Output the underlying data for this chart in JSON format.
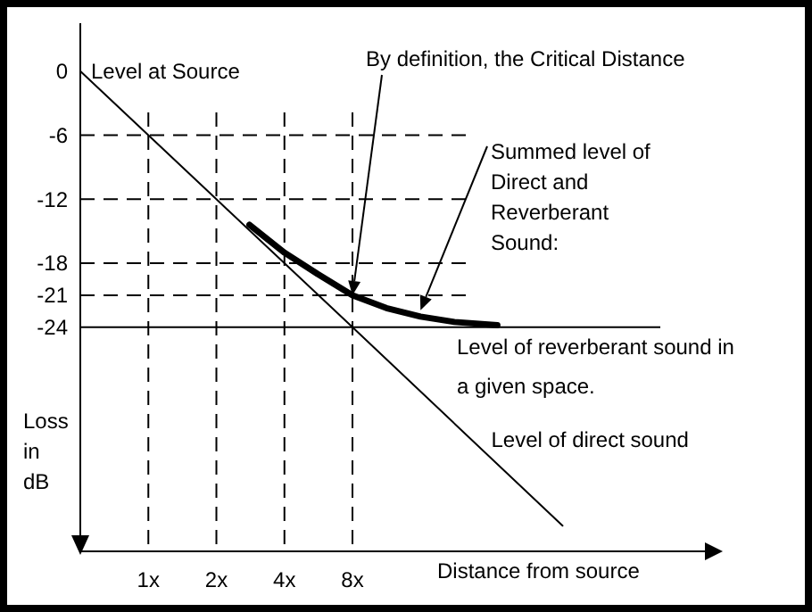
{
  "chart_data": {
    "type": "line",
    "xlabel": "Distance from source",
    "ylabel": "Loss in dB",
    "log": "x",
    "xlim": [
      0.5,
      290
    ],
    "ylim": [
      -45,
      4.5
    ],
    "xticks": [
      {
        "value": 1,
        "label": "1x"
      },
      {
        "value": 2,
        "label": "2x"
      },
      {
        "value": 4,
        "label": "4x"
      },
      {
        "value": 8,
        "label": "8x"
      }
    ],
    "yticks": [
      0,
      -6,
      -12,
      -18,
      -21,
      -24
    ],
    "series": [
      {
        "name": "Level of direct sound",
        "color": "#000000",
        "x": [
          0.5,
          1,
          2,
          4,
          8,
          68
        ],
        "values": [
          0,
          -6,
          -12,
          -18,
          -24,
          -42.6
        ]
      },
      {
        "color": "#000000",
        "x": [
          2.8,
          4,
          5.6,
          8,
          11.3,
          16,
          22.6,
          35
        ],
        "values": [
          -14.4,
          -17,
          -19,
          -21,
          -22.2,
          -23,
          -23.5,
          -23.8
        ]
      }
    ],
    "ref_lines": [
      {
        "axis": "y",
        "value": -6,
        "line_style": "dashed"
      },
      {
        "axis": "y",
        "value": -12,
        "line_style": "dashed"
      },
      {
        "axis": "y",
        "value": -18,
        "line_style": "dashed"
      },
      {
        "axis": "y",
        "value": -21,
        "line_style": "dashed"
      },
      {
        "axis": "y",
        "value": -24,
        "line_style": "solid",
        "label": "Level of reverberant sound in a given space."
      },
      {
        "axis": "x",
        "value": 1,
        "line_style": "dashed"
      },
      {
        "axis": "x",
        "value": 2,
        "line_style": "dashed"
      },
      {
        "axis": "x",
        "value": 4,
        "line_style": "dashed"
      },
      {
        "axis": "x",
        "value": 8,
        "line_style": "dashed"
      }
    ],
    "annotations": [
      {
        "text": "Level at Source",
        "x": 0.5,
        "y": 0
      },
      {
        "text": "By definition, the Critical Distance",
        "x": 8,
        "y": -21
      },
      {
        "text": "Summed level of Direct and Reverberant Sound:",
        "x": 16,
        "y": -22.4
      }
    ]
  }
}
